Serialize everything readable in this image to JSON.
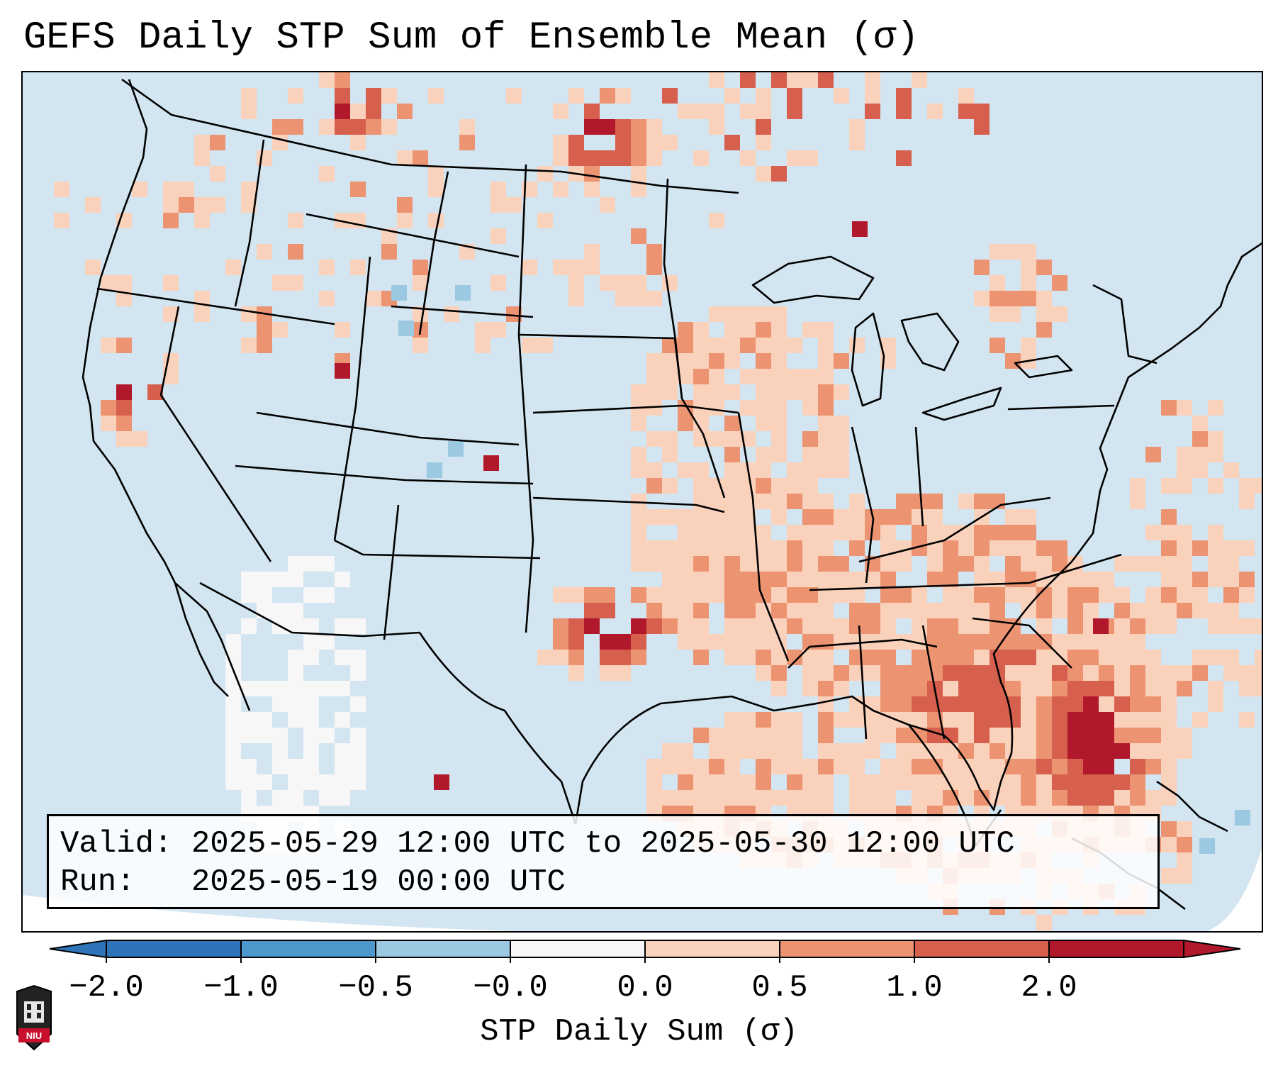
{
  "title": "GEFS Daily STP Sum of Ensemble Mean (σ)",
  "info": {
    "valid_label": "Valid:",
    "valid_value": "2025-05-29 12:00 UTC to 2025-05-30 12:00 UTC",
    "run_label": "Run:",
    "run_value": "2025-05-19 00:00 UTC"
  },
  "colorbar": {
    "label": "STP Daily Sum (σ)",
    "tick_labels": [
      "−2.0",
      "−1.0",
      "−0.5",
      "−0.0",
      "0.0",
      "0.5",
      "1.0",
      "2.0"
    ],
    "colors": [
      "#2f74b8",
      "#4c97cc",
      "#9cc9e2",
      "#f7f7f7",
      "#fad2bb",
      "#ec9472",
      "#d6604d",
      "#b2182b"
    ]
  },
  "map": {
    "background_color": "#d2e5f1",
    "land_border_color": "#000000"
  },
  "logo": {
    "name": "NIU",
    "icon": "university-shield-icon"
  }
}
